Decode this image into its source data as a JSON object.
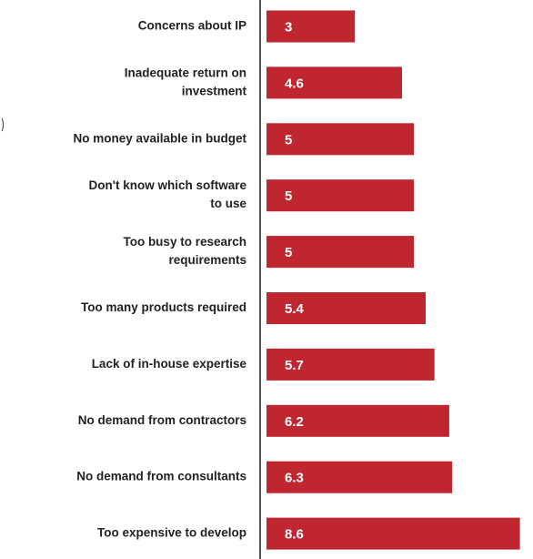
{
  "chart_data": {
    "type": "bar",
    "orientation": "horizontal",
    "title": "",
    "xlabel": "",
    "ylabel": "",
    "grid": false,
    "legend": false,
    "bar_color": "#c0262f",
    "axis_color": "#555555",
    "value_max": 8.6,
    "categories": [
      [
        "Concerns about  IP"
      ],
      [
        "Inadequate return on",
        "investment"
      ],
      [
        "No money available in budget"
      ],
      [
        "Don't know which software",
        "to use"
      ],
      [
        "Too busy to research",
        "requirements"
      ],
      [
        "Too many products required"
      ],
      [
        "Lack of in-house expertise"
      ],
      [
        "No demand from contractors"
      ],
      [
        "No demand from consultants"
      ],
      [
        "Too expensive to develop"
      ]
    ],
    "values": [
      3,
      4.6,
      5,
      5,
      5,
      5.4,
      5.7,
      6.2,
      6.3,
      8.6
    ],
    "value_labels": [
      "3",
      "4.6",
      "5",
      "5",
      "5",
      "5.4",
      "5.7",
      "6.2",
      "6.3",
      "8.6"
    ]
  }
}
